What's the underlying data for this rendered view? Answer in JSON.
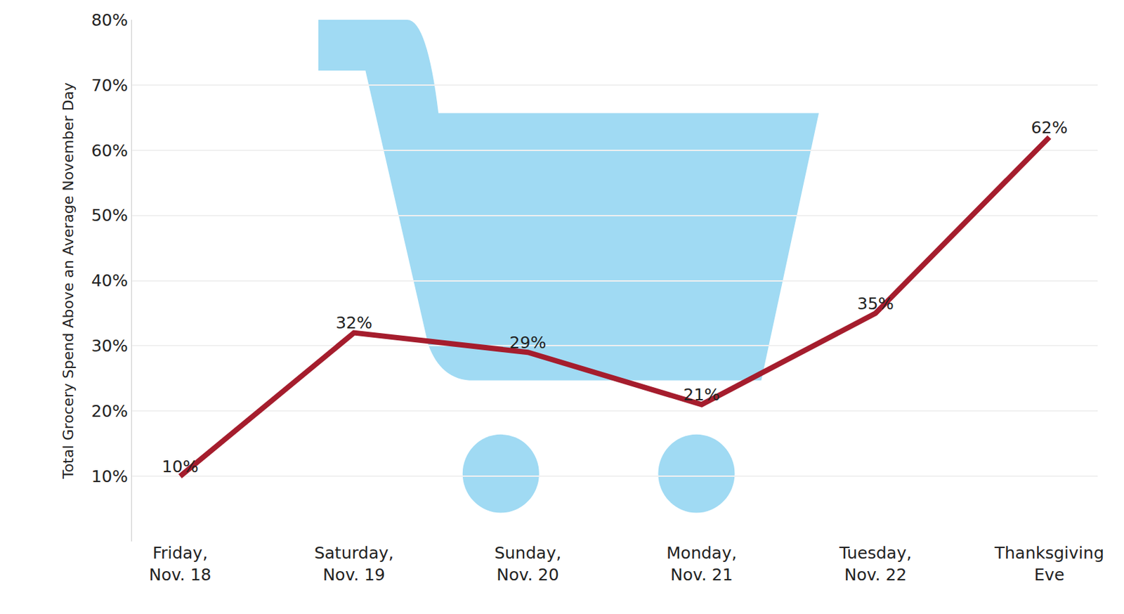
{
  "chart_data": {
    "type": "line",
    "y_label": "Total Grocery Spend Above an Average November Day",
    "categories": [
      "Friday, Nov. 18",
      "Saturday, Nov. 19",
      "Sunday, Nov. 20",
      "Monday, Nov. 21",
      "Tuesday, Nov. 22",
      "Thanksgiving Eve"
    ],
    "values": [
      10,
      32,
      29,
      21,
      35,
      62
    ],
    "value_labels": [
      "10%",
      "32%",
      "29%",
      "21%",
      "35%",
      "62%"
    ],
    "color": "#a51d2d",
    "ylim": [
      0,
      80
    ],
    "yticks": [
      {
        "value": 10,
        "label": "10%"
      },
      {
        "value": 20,
        "label": "20%"
      },
      {
        "value": 30,
        "label": "30%"
      },
      {
        "value": 40,
        "label": "40%"
      },
      {
        "value": 50,
        "label": "50%"
      },
      {
        "value": 60,
        "label": "60%"
      },
      {
        "value": 70,
        "label": "70%"
      },
      {
        "value": 80,
        "label": "80%"
      }
    ],
    "grid": true,
    "data_labels": true
  }
}
